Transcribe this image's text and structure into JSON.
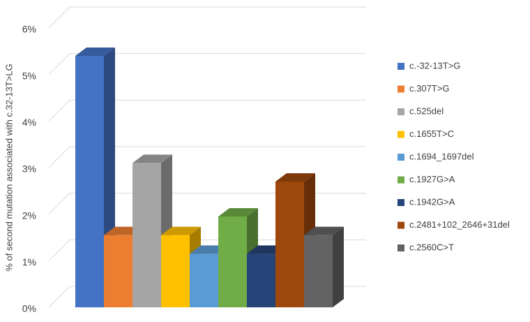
{
  "chart_data": {
    "type": "bar3d",
    "y_label": "% of second mutation associated with c.32-13T>LG",
    "categories": [
      "c.-32-13T>G",
      "c.307T>G",
      "c.525del",
      "c.1655T>C",
      "c.1694_1697del",
      "c.1927G>A",
      "c.1942G>A",
      "c.2481+102_2646+31del",
      "c.2560C>T"
    ],
    "values": [
      5.4,
      1.55,
      3.1,
      1.55,
      1.15,
      1.95,
      1.15,
      2.7,
      1.55
    ],
    "colors": [
      "#4472c4",
      "#ed7d31",
      "#a5a5a5",
      "#ffc000",
      "#5b9bd5",
      "#70ad47",
      "#264478",
      "#9e480e",
      "#636363"
    ],
    "ylim": [
      0,
      6
    ],
    "yticks": [
      {
        "value": 0,
        "label": "0%"
      },
      {
        "value": 1,
        "label": "1%"
      },
      {
        "value": 2,
        "label": "2%"
      },
      {
        "value": 3,
        "label": "3%"
      },
      {
        "value": 4,
        "label": "4%"
      },
      {
        "value": 5,
        "label": "5%"
      },
      {
        "value": 6,
        "label": "6%"
      }
    ],
    "grid": true,
    "legend": "right"
  }
}
